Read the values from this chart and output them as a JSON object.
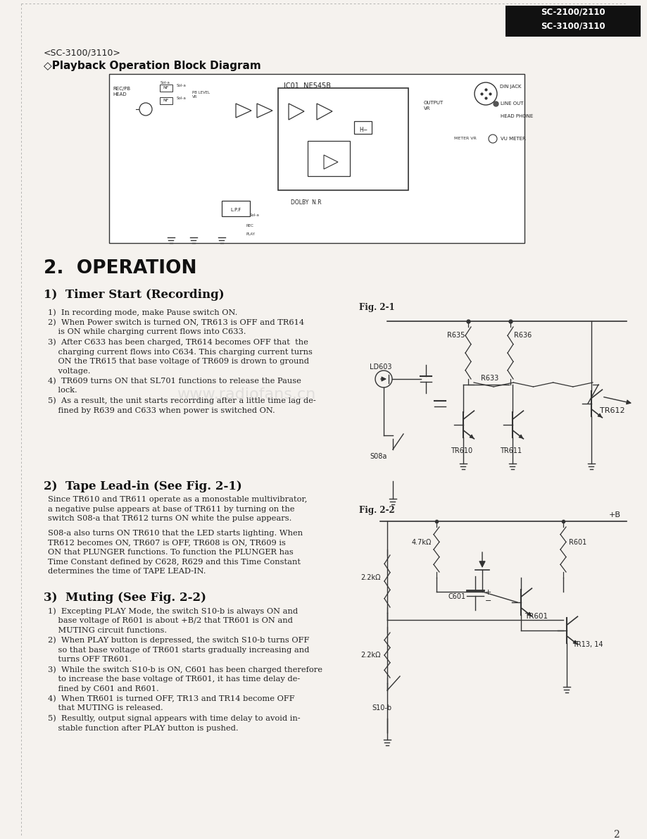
{
  "bg_color": "#f5f2ee",
  "header_box_color": "#111111",
  "header_text": "SC-2100/2110\nSC-3100/3110",
  "sc_model": "<SC-3100/3110>",
  "block_diagram_title": "◇Playback Operation Block Diagram",
  "section_title": "2.  OPERATION",
  "sub1_title": "1)  Timer Start (Recording)",
  "sub1_items": [
    "1)  In recording mode, make Pause switch ON.",
    "2)  When Power switch is turned ON, TR613 is OFF and TR614\n    is ON while charging current flows into C633.",
    "3)  After C633 has been charged, TR614 becomes OFF that  the\n    charging current flows into C634. This charging current turns\n    ON the TR615 that base voltage of TR609 is drown to ground\n    voltage.",
    "4)  TR609 turns ON that SL701 functions to release the Pause\n    lock.",
    "5)  As a result, the unit starts recorrding after a little time lag de-\n    fined by R639 and C633 when power is switched ON."
  ],
  "sub2_title": "2)  Tape Lead-in (See Fig. 2-1)",
  "sub2_text1": "Since TR610 and TR611 operate as a monostable multivibrator,\na negative pulse appears at base of TR611 by turning on the\nswitch S08-a that TR612 turns ON white the pulse appears.",
  "sub2_text2": "S08-a also turns ON TR610 that the LED starts lighting. When\nTR612 becomes ON, TR607 is OFF, TR608 is ON, TR609 is\nON that PLUNGER functions. To function the PLUNGER has\nTime Constant defined by C628, R629 and this Time Constant\ndetermines the time of TAPE LEAD-IN.",
  "sub3_title": "3)  Muting (See Fig. 2-2)",
  "sub3_items": [
    "1)  Excepting PLAY Mode, the switch S10-b is always ON and\n    base voltage of R601 is about +B/2 that TR601 is ON and\n    MUTING circuit functions.",
    "2)  When PLAY button is depressed, the switch S10-b turns OFF\n    so that base voltage of TR601 starts gradually increasing and\n    turns OFF TR601.",
    "3)  While the switch S10-b is ON, C601 has been charged therefore\n    to increase the base voltage of TR601, it has time delay de-\n    fined by C601 and R601.",
    "4)  When TR601 is turned OFF, TR13 and TR14 become OFF\n    that MUTING is released.",
    "5)  Resultly, output signal appears with time delay to avoid in-\n    stable function after PLAY button is pushed."
  ],
  "page_number": "2",
  "watermark": "www.radiofans.cn"
}
